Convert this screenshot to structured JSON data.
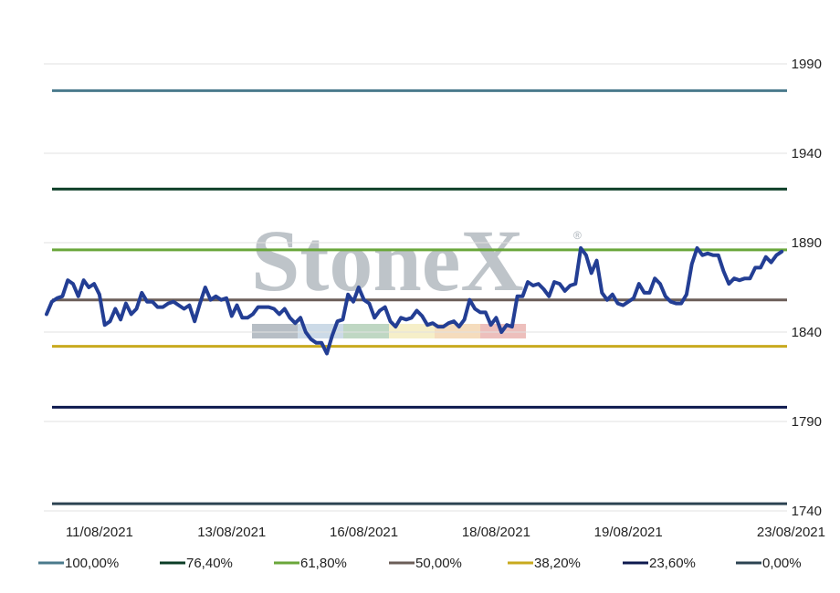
{
  "chart_data": {
    "type": "line",
    "title": "",
    "xlabel": "",
    "ylabel": "",
    "x_tick_labels": [
      "11/08/2021",
      "13/08/2021",
      "16/08/2021",
      "18/08/2021",
      "19/08/2021",
      "23/08/2021"
    ],
    "x_tick_positions": [
      10,
      35,
      60,
      85,
      110,
      140
    ],
    "x_range": [
      0,
      140
    ],
    "ylim": [
      1740,
      1990
    ],
    "y_ticks": [
      1740,
      1790,
      1840,
      1890,
      1940,
      1990
    ],
    "y_axis_side": "right",
    "grid": true,
    "legend_placement": "bottom",
    "watermark": "StoneX",
    "watermark_mark": "®",
    "price_series": {
      "color": "#233e94",
      "values": [
        1850,
        1857,
        1859,
        1860,
        1869,
        1867,
        1860,
        1869,
        1865,
        1867,
        1861,
        1844,
        1846,
        1853,
        1847,
        1856,
        1850,
        1853,
        1862,
        1857,
        1857,
        1854,
        1854,
        1856,
        1857,
        1855,
        1853,
        1855,
        1846,
        1856,
        1865,
        1858,
        1860,
        1858,
        1859,
        1849,
        1855,
        1848,
        1848,
        1850,
        1854,
        1854,
        1854,
        1853,
        1850,
        1853,
        1848,
        1845,
        1848,
        1840,
        1836,
        1834,
        1834,
        1828,
        1838,
        1846,
        1847,
        1861,
        1857,
        1865,
        1858,
        1856,
        1848,
        1852,
        1854,
        1846,
        1843,
        1848,
        1847,
        1848,
        1852,
        1849,
        1844,
        1845,
        1843,
        1843,
        1845,
        1846,
        1843,
        1847,
        1858,
        1853,
        1851,
        1851,
        1844,
        1848,
        1840,
        1844,
        1843,
        1860,
        1860,
        1868,
        1866,
        1867,
        1864,
        1860,
        1868,
        1867,
        1863,
        1866,
        1867,
        1887,
        1883,
        1873,
        1880,
        1862,
        1858,
        1861,
        1856,
        1855,
        1857,
        1859,
        1867,
        1862,
        1862,
        1870,
        1867,
        1860,
        1857,
        1856,
        1856,
        1861,
        1878,
        1887,
        1883,
        1884,
        1883,
        1883,
        1874,
        1867,
        1870,
        1869,
        1870,
        1870,
        1876,
        1876,
        1882,
        1879,
        1883,
        1885
      ]
    },
    "levels": [
      {
        "name": "100,00%",
        "value": 1975,
        "color": "#4a7a8c"
      },
      {
        "name": "76,40%",
        "value": 1920,
        "color": "#0b3d26"
      },
      {
        "name": "61,80%",
        "value": 1886,
        "color": "#6aa63a"
      },
      {
        "name": "50,00%",
        "value": 1858,
        "color": "#6b5e58"
      },
      {
        "name": "38,20%",
        "value": 1832,
        "color": "#c8aa1e"
      },
      {
        "name": "23,60%",
        "value": 1798,
        "color": "#0e1a4f"
      },
      {
        "name": "0,00%",
        "value": 1744,
        "color": "#2c4352"
      }
    ],
    "watermark_swatches": [
      "#aab3bb",
      "#c3d3e3",
      "#b4d0b8",
      "#f4ecc0",
      "#f3d6b2",
      "#eab4b0"
    ]
  }
}
